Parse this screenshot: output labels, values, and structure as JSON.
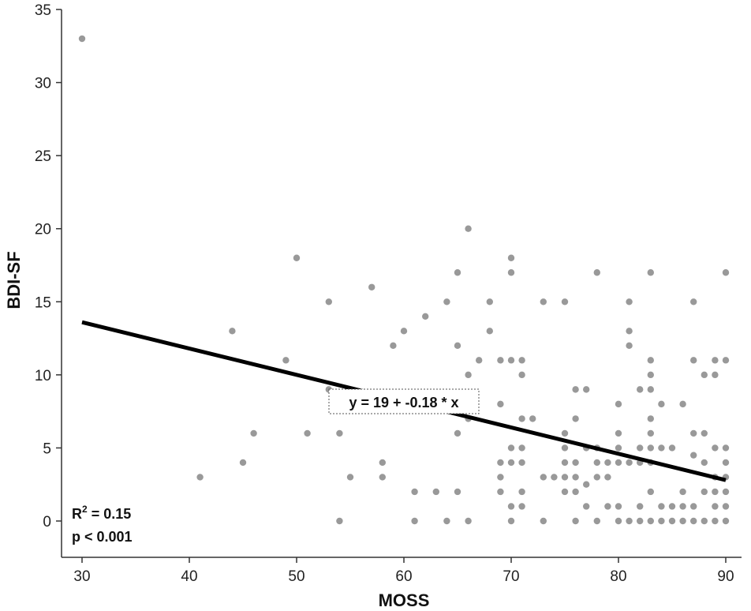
{
  "chart_data": {
    "type": "scatter",
    "title": "",
    "xlabel": "MOSS",
    "ylabel": "BDI-SF",
    "xlim": [
      30,
      90
    ],
    "ylim": [
      0,
      35
    ],
    "xticks": [
      30,
      40,
      50,
      60,
      70,
      80,
      90
    ],
    "yticks": [
      0,
      5,
      10,
      15,
      20,
      25,
      30,
      35
    ],
    "grid": false,
    "point_color": "#999999",
    "line_color": "#000000",
    "series": [
      {
        "points": [
          [
            30,
            33
          ],
          [
            41,
            3
          ],
          [
            44,
            13
          ],
          [
            45,
            4
          ],
          [
            46,
            6
          ],
          [
            49,
            11
          ],
          [
            50,
            18
          ],
          [
            51,
            6
          ],
          [
            53,
            15
          ],
          [
            53,
            9
          ],
          [
            54,
            6
          ],
          [
            54,
            0
          ],
          [
            55,
            3
          ],
          [
            57,
            16
          ],
          [
            58,
            3
          ],
          [
            58,
            4
          ],
          [
            59,
            12
          ],
          [
            60,
            13
          ],
          [
            61,
            2
          ],
          [
            61,
            0
          ],
          [
            62,
            14
          ],
          [
            63,
            2
          ],
          [
            64,
            15
          ],
          [
            64,
            0
          ],
          [
            65,
            17
          ],
          [
            65,
            12
          ],
          [
            65,
            6
          ],
          [
            65,
            2
          ],
          [
            66,
            20
          ],
          [
            66,
            10
          ],
          [
            66,
            7
          ],
          [
            66,
            0
          ],
          [
            67,
            11
          ],
          [
            68,
            15
          ],
          [
            68,
            13
          ],
          [
            69,
            11
          ],
          [
            69,
            8
          ],
          [
            69,
            4
          ],
          [
            69,
            3
          ],
          [
            69,
            2
          ],
          [
            70,
            18
          ],
          [
            70,
            17
          ],
          [
            70,
            11
          ],
          [
            70,
            5
          ],
          [
            70,
            4
          ],
          [
            70,
            1
          ],
          [
            70,
            0
          ],
          [
            71,
            11
          ],
          [
            71,
            10
          ],
          [
            71,
            7
          ],
          [
            71,
            5
          ],
          [
            71,
            4
          ],
          [
            71,
            2
          ],
          [
            71,
            1
          ],
          [
            72,
            7
          ],
          [
            73,
            15
          ],
          [
            73,
            3
          ],
          [
            73,
            0
          ],
          [
            74,
            3
          ],
          [
            75,
            15
          ],
          [
            75,
            6
          ],
          [
            75,
            5
          ],
          [
            75,
            4
          ],
          [
            75,
            3
          ],
          [
            75,
            2
          ],
          [
            76,
            9
          ],
          [
            76,
            7
          ],
          [
            76,
            4
          ],
          [
            76,
            3
          ],
          [
            76,
            2
          ],
          [
            76,
            0
          ],
          [
            77,
            9
          ],
          [
            77,
            5
          ],
          [
            77,
            2.5
          ],
          [
            77,
            1
          ],
          [
            78,
            17
          ],
          [
            78,
            5
          ],
          [
            78,
            4
          ],
          [
            78,
            3
          ],
          [
            78,
            0
          ],
          [
            79,
            4
          ],
          [
            79,
            3
          ],
          [
            79,
            1
          ],
          [
            80,
            8
          ],
          [
            80,
            6
          ],
          [
            80,
            5
          ],
          [
            80,
            4
          ],
          [
            80,
            1
          ],
          [
            80,
            0
          ],
          [
            81,
            15
          ],
          [
            81,
            13
          ],
          [
            81,
            12
          ],
          [
            81,
            4
          ],
          [
            81,
            0
          ],
          [
            82,
            9
          ],
          [
            82,
            5
          ],
          [
            82,
            4
          ],
          [
            82,
            1
          ],
          [
            82,
            0
          ],
          [
            83,
            17
          ],
          [
            83,
            11
          ],
          [
            83,
            10
          ],
          [
            83,
            9
          ],
          [
            83,
            7
          ],
          [
            83,
            6
          ],
          [
            83,
            5
          ],
          [
            83,
            4
          ],
          [
            83,
            2
          ],
          [
            83,
            0
          ],
          [
            84,
            8
          ],
          [
            84,
            5
          ],
          [
            84,
            1
          ],
          [
            84,
            0
          ],
          [
            85,
            5
          ],
          [
            85,
            1
          ],
          [
            85,
            0
          ],
          [
            86,
            8
          ],
          [
            86,
            2
          ],
          [
            86,
            1
          ],
          [
            86,
            0
          ],
          [
            87,
            15
          ],
          [
            87,
            11
          ],
          [
            87,
            6
          ],
          [
            87,
            4.5
          ],
          [
            87,
            1
          ],
          [
            87,
            0
          ],
          [
            88,
            10
          ],
          [
            88,
            6
          ],
          [
            88,
            4
          ],
          [
            88,
            2
          ],
          [
            88,
            0
          ],
          [
            89,
            11
          ],
          [
            89,
            10
          ],
          [
            89,
            5
          ],
          [
            89,
            3
          ],
          [
            89,
            2
          ],
          [
            89,
            1
          ],
          [
            89,
            0
          ],
          [
            90,
            17
          ],
          [
            90,
            11
          ],
          [
            90,
            5
          ],
          [
            90,
            4
          ],
          [
            90,
            3
          ],
          [
            90,
            2
          ],
          [
            90,
            1
          ],
          [
            90,
            0
          ]
        ]
      }
    ],
    "fit_line": {
      "intercept": 19,
      "slope": -0.18,
      "x_range": [
        30,
        90
      ]
    },
    "annotations": {
      "equation": "y = 19 + -0.18 * x",
      "r2_prefix": "R",
      "r2_sup": "2",
      "r2_value": " = 0.15",
      "p_value": "p < 0.001"
    }
  }
}
